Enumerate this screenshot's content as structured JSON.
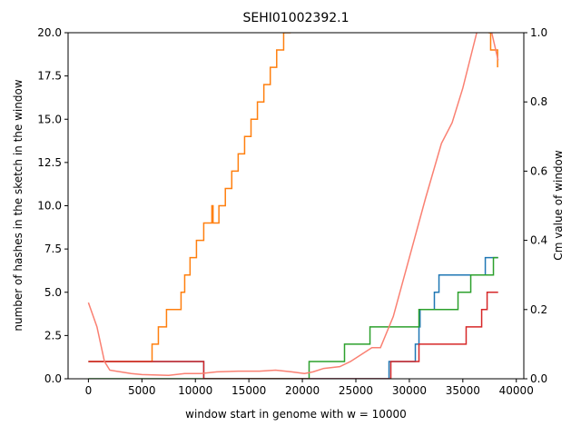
{
  "chart_data": {
    "type": "line",
    "title": "SEHI01002392.1",
    "xlabel": "window start in genome with w = 10000",
    "ylabel": "number of hashes in the sketch in the window",
    "y2label": "Cm value of window",
    "ylabel_color": "#2ca02c",
    "y2label_color": "#fa8072",
    "xlim": [
      -1900,
      40700
    ],
    "ylim": [
      0,
      20
    ],
    "y2lim": [
      0,
      1
    ],
    "xticks": [
      0,
      5000,
      10000,
      15000,
      20000,
      25000,
      30000,
      35000,
      40000
    ],
    "yticks": [
      {
        "value": 0,
        "label": "0.0"
      },
      {
        "value": 2.5,
        "label": "2.5"
      },
      {
        "value": 5,
        "label": "5.0"
      },
      {
        "value": 7.5,
        "label": "7.5"
      },
      {
        "value": 10,
        "label": "10.0"
      },
      {
        "value": 12.5,
        "label": "12.5"
      },
      {
        "value": 15,
        "label": "15.0"
      },
      {
        "value": 17.5,
        "label": "17.5"
      },
      {
        "value": 20,
        "label": "20.0"
      }
    ],
    "y2ticks": [
      {
        "value": 0,
        "label": "0.0"
      },
      {
        "value": 0.2,
        "label": "0.2"
      },
      {
        "value": 0.4,
        "label": "0.4"
      },
      {
        "value": 0.6,
        "label": "0.6"
      },
      {
        "value": 0.8,
        "label": "0.8"
      },
      {
        "value": 1,
        "label": "1.0"
      }
    ],
    "series": [
      {
        "color": "#1f77b4",
        "drawstyle": "steps-post",
        "x": [
          0,
          10780,
          28100,
          30560,
          30900,
          31000,
          32340,
          32770,
          37100,
          38300
        ],
        "values": [
          1,
          0,
          1,
          2,
          3,
          4,
          5,
          6,
          7,
          7
        ]
      },
      {
        "color": "#ff7f0e",
        "drawstyle": "steps-post",
        "x": [
          0,
          5950,
          6540,
          7300,
          8660,
          9000,
          9500,
          10100,
          10780,
          11540,
          11650,
          12200,
          12800,
          13400,
          14000,
          14600,
          15200,
          15800,
          16400,
          17000,
          17600,
          18250,
          18850,
          37450,
          37600,
          38250
        ],
        "values": [
          1,
          2,
          3,
          4,
          5,
          6,
          7,
          8,
          9,
          10,
          9,
          10,
          11,
          12,
          13,
          14,
          15,
          16,
          17,
          18,
          19,
          20,
          21,
          20,
          19,
          18
        ]
      },
      {
        "color": "#2ca02c",
        "drawstyle": "steps-post",
        "x": [
          0,
          20630,
          23940,
          26320,
          30900,
          34550,
          35740,
          37860,
          38300
        ],
        "values": [
          0,
          1,
          2,
          3,
          4,
          5,
          6,
          7,
          7
        ]
      },
      {
        "color": "#d62728",
        "drawstyle": "steps-post",
        "x": [
          0,
          10780,
          28270,
          30900,
          35310,
          36760,
          37270,
          38300
        ],
        "values": [
          1,
          0,
          1,
          2,
          3,
          4,
          5,
          5
        ]
      },
      {
        "color": "#fa8072",
        "drawstyle": "line",
        "axis": "y2",
        "x": [
          0,
          800,
          1500,
          2000,
          3000,
          4000,
          5000,
          7500,
          9000,
          10500,
          12000,
          14000,
          16000,
          17500,
          19000,
          20200,
          21000,
          22000,
          23500,
          24500,
          25500,
          26500,
          27300,
          28500,
          30000,
          31500,
          33000,
          34000,
          35000,
          36300,
          37000,
          37700,
          38300
        ],
        "values": [
          0.22,
          0.15,
          0.05,
          0.025,
          0.02,
          0.015,
          0.012,
          0.01,
          0.015,
          0.015,
          0.02,
          0.022,
          0.022,
          0.025,
          0.02,
          0.015,
          0.02,
          0.03,
          0.035,
          0.05,
          0.07,
          0.09,
          0.09,
          0.18,
          0.35,
          0.52,
          0.68,
          0.74,
          0.84,
          1.0,
          1.05,
          1.0,
          0.92
        ]
      }
    ]
  }
}
